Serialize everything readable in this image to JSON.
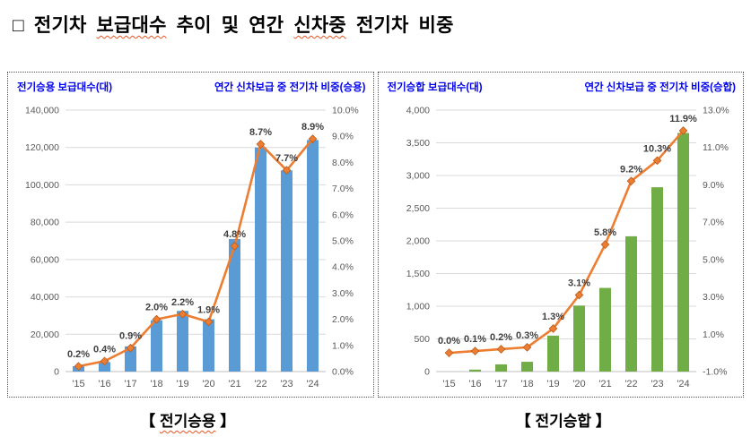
{
  "page_title": {
    "parts": [
      {
        "text": "□ 전기차 ",
        "underline": false
      },
      {
        "text": "보급대수",
        "underline": true
      },
      {
        "text": " 추이 및 연간 ",
        "underline": false
      },
      {
        "text": "신차중",
        "underline": true
      },
      {
        "text": " 전기차 비중",
        "underline": false
      }
    ]
  },
  "colors": {
    "header_blue": "#0000F0",
    "bar_blue": "#5B9BD5",
    "bar_green": "#70AD47",
    "line_orange": "#ED7D31",
    "gridline": "#D9D9D9",
    "axis_text": "#595959",
    "underline_red": "#E8531F"
  },
  "chart_data": [
    {
      "type": "bar+line combo",
      "title_left": "전기승용 보급대수(대)",
      "title_right": "연간 신차보급 중 전기차 비중(승용)",
      "categories": [
        "'15",
        "'16",
        "'17",
        "'18",
        "'19",
        "'20",
        "'21",
        "'22",
        "'23",
        "'24"
      ],
      "bars": {
        "name": "전기승용 보급대수(대)",
        "color": "#5B9BD5",
        "values": [
          2900,
          5100,
          13500,
          27500,
          32500,
          28000,
          71000,
          120000,
          107700,
          124000
        ]
      },
      "line": {
        "name": "연간 신차보급 중 전기차 비중(승용)",
        "color": "#ED7D31",
        "values": [
          0.2,
          0.4,
          0.9,
          2.0,
          2.2,
          1.9,
          4.8,
          8.7,
          7.7,
          8.9
        ],
        "labels": [
          "0.2%",
          "0.4%",
          "0.9%",
          "2.0%",
          "2.2%",
          "1.9%",
          "4.8%",
          "8.7%",
          "7.7%",
          "8.9%"
        ]
      },
      "left_axis": {
        "min": 0,
        "max": 140000,
        "step": 20000,
        "labels": [
          "0",
          "20,000",
          "40,000",
          "60,000",
          "80,000",
          "100,000",
          "120,000",
          "140,000"
        ]
      },
      "right_axis": {
        "min": 0,
        "max": 10,
        "step": 1,
        "labels": [
          "0.0%",
          "1.0%",
          "2.0%",
          "3.0%",
          "4.0%",
          "5.0%",
          "6.0%",
          "7.0%",
          "8.0%",
          "9.0%",
          "10.0%"
        ]
      },
      "grid": true,
      "legend": "none"
    },
    {
      "type": "bar+line combo",
      "title_left": "전기승합 보급대수(대)",
      "title_right": "연간 신차보급 중 전기차 비중(승합)",
      "categories": [
        "'15",
        "'16",
        "'17",
        "'18",
        "'19",
        "'20",
        "'21",
        "'22",
        "'23",
        "'24"
      ],
      "bars": {
        "name": "전기승합 보급대수(대)",
        "color": "#70AD47",
        "values": [
          0,
          30,
          110,
          150,
          550,
          1010,
          1280,
          2070,
          2820,
          3650
        ]
      },
      "line": {
        "name": "연간 신차보급 중 전기차 비중(승합)",
        "color": "#ED7D31",
        "values": [
          0.0,
          0.1,
          0.2,
          0.3,
          1.3,
          3.1,
          5.8,
          9.2,
          10.3,
          11.9
        ],
        "labels": [
          "0.0%",
          "0.1%",
          "0.2%",
          "0.3%",
          "1.3%",
          "3.1%",
          "5.8%",
          "9.2%",
          "10.3%",
          "11.9%"
        ]
      },
      "left_axis": {
        "min": 0,
        "max": 4000,
        "step": 500,
        "labels": [
          "0",
          "500",
          "1,000",
          "1,500",
          "2,000",
          "2,500",
          "3,000",
          "3,500",
          "4,000"
        ]
      },
      "right_axis": {
        "min": -1,
        "max": 13,
        "step": 2,
        "labels": [
          "-1.0%",
          "1.0%",
          "3.0%",
          "5.0%",
          "7.0%",
          "9.0%",
          "11.0%",
          "13.0%"
        ]
      },
      "grid": true,
      "legend": "none"
    }
  ],
  "captions": [
    {
      "parts": [
        {
          "text": "【 ",
          "underline": false
        },
        {
          "text": "전기승용",
          "underline": true
        },
        {
          "text": " 】",
          "underline": false
        }
      ]
    },
    {
      "parts": [
        {
          "text": "【 전기승합 】",
          "underline": false
        }
      ]
    }
  ]
}
